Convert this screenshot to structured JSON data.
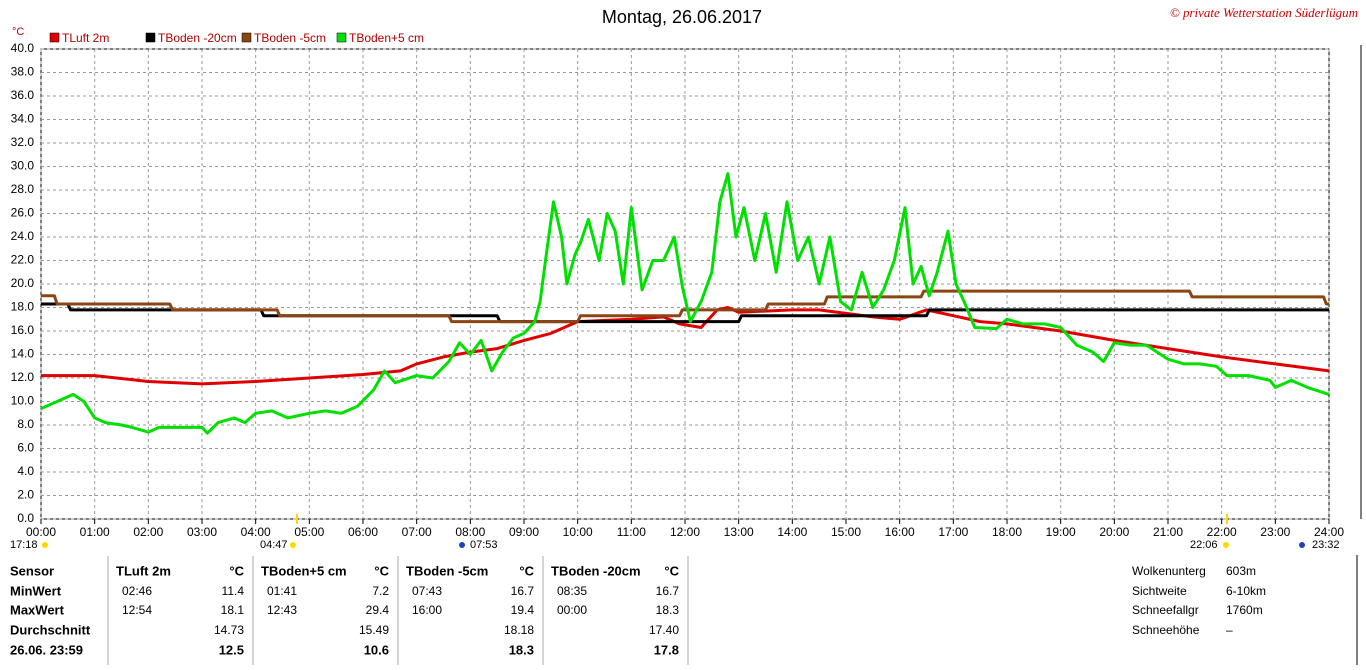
{
  "chart_data": {
    "type": "line",
    "title": "Montag, 26.06.2017",
    "copyright": "© private Wetterstation Süderlügum",
    "y_unit": "°C",
    "xlim": [
      0,
      24
    ],
    "ylim": [
      0,
      40
    ],
    "grid": true,
    "legend": "top-left",
    "xticks": [
      {
        "value": 0,
        "label": "00:00"
      },
      {
        "value": 1,
        "label": "01:00"
      },
      {
        "value": 2,
        "label": "02:00"
      },
      {
        "value": 3,
        "label": "03:00"
      },
      {
        "value": 4,
        "label": "04:00"
      },
      {
        "value": 5,
        "label": "05:00"
      },
      {
        "value": 6,
        "label": "06:00"
      },
      {
        "value": 7,
        "label": "07:00"
      },
      {
        "value": 8,
        "label": "08:00"
      },
      {
        "value": 9,
        "label": "09:00"
      },
      {
        "value": 10,
        "label": "10:00"
      },
      {
        "value": 11,
        "label": "11:00"
      },
      {
        "value": 12,
        "label": "12:00"
      },
      {
        "value": 13,
        "label": "13:00"
      },
      {
        "value": 14,
        "label": "14:00"
      },
      {
        "value": 15,
        "label": "15:00"
      },
      {
        "value": 16,
        "label": "16:00"
      },
      {
        "value": 17,
        "label": "17:00"
      },
      {
        "value": 18,
        "label": "18:00"
      },
      {
        "value": 19,
        "label": "19:00"
      },
      {
        "value": 20,
        "label": "20:00"
      },
      {
        "value": 21,
        "label": "21:00"
      },
      {
        "value": 22,
        "label": "22:00"
      },
      {
        "value": 23,
        "label": "23:00"
      },
      {
        "value": 24,
        "label": "24:00"
      }
    ],
    "yticks": [
      {
        "value": 0,
        "label": "0.0"
      },
      {
        "value": 2,
        "label": "2.0"
      },
      {
        "value": 4,
        "label": "4.0"
      },
      {
        "value": 6,
        "label": "6.0"
      },
      {
        "value": 8,
        "label": "8.0"
      },
      {
        "value": 10,
        "label": "10.0"
      },
      {
        "value": 12,
        "label": "12.0"
      },
      {
        "value": 14,
        "label": "14.0"
      },
      {
        "value": 16,
        "label": "16.0"
      },
      {
        "value": 18,
        "label": "18.0"
      },
      {
        "value": 20,
        "label": "20.0"
      },
      {
        "value": 22,
        "label": "22.0"
      },
      {
        "value": 24,
        "label": "24.0"
      },
      {
        "value": 26,
        "label": "26.0"
      },
      {
        "value": 28,
        "label": "28.0"
      },
      {
        "value": 30,
        "label": "30.0"
      },
      {
        "value": 32,
        "label": "32.0"
      },
      {
        "value": 34,
        "label": "34.0"
      },
      {
        "value": 36,
        "label": "36.0"
      },
      {
        "value": 38,
        "label": "38.0"
      },
      {
        "value": 40,
        "label": "40.0"
      }
    ],
    "series": [
      {
        "name": "TLuft 2m",
        "color": "#e00000",
        "x": [
          0,
          1,
          2,
          3,
          4,
          5,
          6,
          6.7,
          7,
          7.5,
          8,
          8.5,
          9,
          9.5,
          10,
          11,
          11.6,
          11.9,
          12.3,
          12.6,
          12.8,
          13,
          14,
          14.5,
          15,
          15.5,
          16,
          16.5,
          17,
          17.5,
          18,
          19,
          20,
          21,
          22,
          23,
          24
        ],
        "y": [
          12.2,
          12.2,
          11.7,
          11.5,
          11.7,
          12.0,
          12.3,
          12.6,
          13.2,
          13.8,
          14.2,
          14.5,
          15.2,
          15.8,
          16.8,
          17.0,
          17.2,
          16.6,
          16.3,
          17.8,
          18.0,
          17.6,
          17.8,
          17.8,
          17.5,
          17.2,
          17.0,
          17.8,
          17.3,
          16.8,
          16.6,
          16.0,
          15.2,
          14.5,
          13.8,
          13.2,
          12.6
        ]
      },
      {
        "name": "TBoden -20cm",
        "color": "#000000",
        "x": [
          0,
          0.5,
          0.55,
          4.1,
          4.15,
          8.5,
          8.55,
          13.0,
          13.05,
          16.5,
          16.55,
          24
        ],
        "y": [
          18.3,
          18.3,
          17.8,
          17.8,
          17.3,
          17.3,
          16.8,
          16.8,
          17.3,
          17.3,
          17.8,
          17.8
        ]
      },
      {
        "name": "TBoden -5cm",
        "color": "#8b4513",
        "x": [
          0,
          0.25,
          0.3,
          2.4,
          2.45,
          4.4,
          4.45,
          7.6,
          7.65,
          10.0,
          10.05,
          11.9,
          11.95,
          13.5,
          13.55,
          14.6,
          14.65,
          16.4,
          16.45,
          21.4,
          21.45,
          23.9,
          23.95,
          24
        ],
        "y": [
          19.0,
          19.0,
          18.3,
          18.3,
          17.8,
          17.8,
          17.3,
          17.3,
          16.8,
          16.8,
          17.3,
          17.3,
          17.8,
          17.8,
          18.3,
          18.3,
          18.9,
          18.9,
          19.4,
          19.4,
          18.9,
          18.9,
          18.3,
          18.3
        ]
      },
      {
        "name": "TBoden+5 cm",
        "color": "#00e000",
        "x": [
          0,
          0.3,
          0.6,
          0.8,
          1.0,
          1.2,
          1.5,
          1.7,
          2.0,
          2.2,
          2.6,
          3.0,
          3.1,
          3.3,
          3.6,
          3.8,
          4.0,
          4.3,
          4.6,
          5.0,
          5.3,
          5.6,
          5.9,
          6.2,
          6.4,
          6.6,
          7.0,
          7.3,
          7.6,
          7.8,
          8.0,
          8.2,
          8.4,
          8.6,
          8.8,
          9.0,
          9.2,
          9.3,
          9.4,
          9.55,
          9.7,
          9.8,
          9.95,
          10.05,
          10.2,
          10.4,
          10.55,
          10.7,
          10.85,
          11.0,
          11.2,
          11.4,
          11.6,
          11.8,
          11.95,
          12.1,
          12.3,
          12.5,
          12.65,
          12.8,
          12.95,
          13.1,
          13.3,
          13.5,
          13.7,
          13.9,
          14.1,
          14.3,
          14.5,
          14.7,
          14.9,
          15.1,
          15.3,
          15.5,
          15.7,
          15.9,
          16.1,
          16.25,
          16.4,
          16.55,
          16.7,
          16.9,
          17.05,
          17.2,
          17.4,
          17.8,
          18.0,
          18.3,
          18.7,
          19.0,
          19.3,
          19.6,
          19.8,
          20.0,
          20.3,
          20.6,
          21.0,
          21.3,
          21.6,
          21.9,
          22.1,
          22.5,
          22.9,
          23.0,
          23.3,
          23.6,
          24.0
        ],
        "y": [
          9.4,
          10.0,
          10.6,
          10.0,
          8.6,
          8.2,
          8.0,
          7.8,
          7.4,
          7.8,
          7.8,
          7.8,
          7.3,
          8.2,
          8.6,
          8.2,
          9.0,
          9.2,
          8.6,
          9.0,
          9.2,
          9.0,
          9.6,
          11.0,
          12.6,
          11.6,
          12.2,
          12.0,
          13.4,
          15.0,
          14.0,
          15.2,
          12.6,
          14.2,
          15.4,
          15.8,
          16.8,
          18.5,
          22.0,
          27.0,
          24.0,
          20.0,
          22.5,
          23.5,
          25.5,
          22.0,
          26.0,
          24.5,
          20.0,
          26.5,
          19.5,
          22.0,
          22.0,
          24.0,
          19.8,
          16.8,
          18.5,
          21.0,
          27.0,
          29.4,
          24.0,
          26.5,
          22.0,
          26.0,
          21.0,
          27.0,
          22.0,
          24.0,
          20.0,
          24.0,
          18.5,
          17.8,
          21.0,
          18.0,
          19.5,
          22.0,
          26.5,
          20.0,
          21.5,
          19.0,
          21.0,
          24.5,
          20.0,
          18.5,
          16.3,
          16.2,
          17.0,
          16.6,
          16.6,
          16.3,
          14.8,
          14.2,
          13.4,
          15.0,
          14.8,
          14.8,
          13.6,
          13.2,
          13.2,
          13.0,
          12.2,
          12.2,
          11.8,
          11.2,
          11.8,
          11.2,
          10.6
        ]
      }
    ],
    "sun_moon_times": [
      "17:18",
      "04:47",
      "07:53",
      "22:06",
      "23:32"
    ]
  },
  "stats": {
    "row_labels": [
      "Sensor",
      "MinWert",
      "MaxWert",
      "Durchschnitt",
      "26.06. 23:59"
    ],
    "columns": [
      {
        "name": "TLuft 2m",
        "unit": "°C",
        "min_time": "02:46",
        "min": "11.4",
        "max_time": "12:54",
        "max": "18.1",
        "avg": "14.73",
        "current": "12.5"
      },
      {
        "name": "TBoden+5 cm",
        "unit": "°C",
        "min_time": "01:41",
        "min": "7.2",
        "max_time": "12:43",
        "max": "29.4",
        "avg": "15.49",
        "current": "10.6"
      },
      {
        "name": "TBoden -5cm",
        "unit": "°C",
        "min_time": "07:43",
        "min": "16.7",
        "max_time": "16:00",
        "max": "19.4",
        "avg": "18.18",
        "current": "18.3"
      },
      {
        "name": "TBoden -20cm",
        "unit": "°C",
        "min_time": "08:35",
        "min": "16.7",
        "max_time": "00:00",
        "max": "18.3",
        "avg": "17.40",
        "current": "17.8"
      }
    ],
    "extra": [
      {
        "label": "Wolkenunterg",
        "value": "603m"
      },
      {
        "label": "Sichtweite",
        "value": "6-10km"
      },
      {
        "label": "Schneefallgr",
        "value": "1760m"
      },
      {
        "label": "Schneehöhe",
        "value": "–"
      }
    ]
  }
}
